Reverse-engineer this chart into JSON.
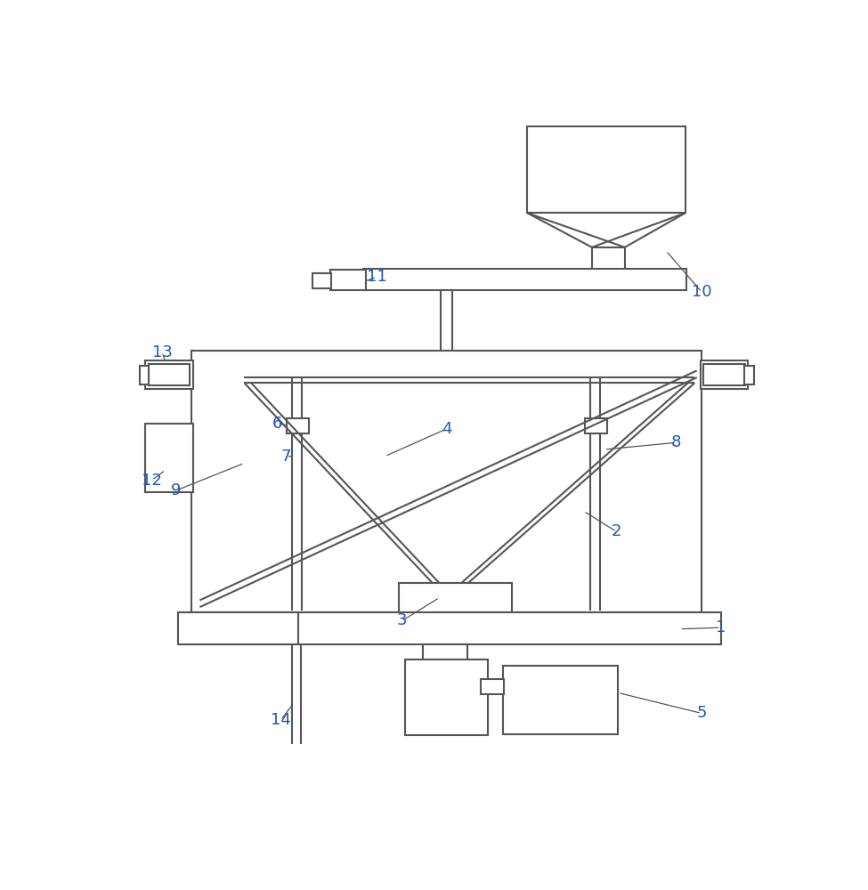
{
  "bg_color": "#ffffff",
  "line_color": "#555555",
  "label_color": "#2255bb",
  "lw": 1.5,
  "thin_lw": 0.9,
  "fs": 13
}
